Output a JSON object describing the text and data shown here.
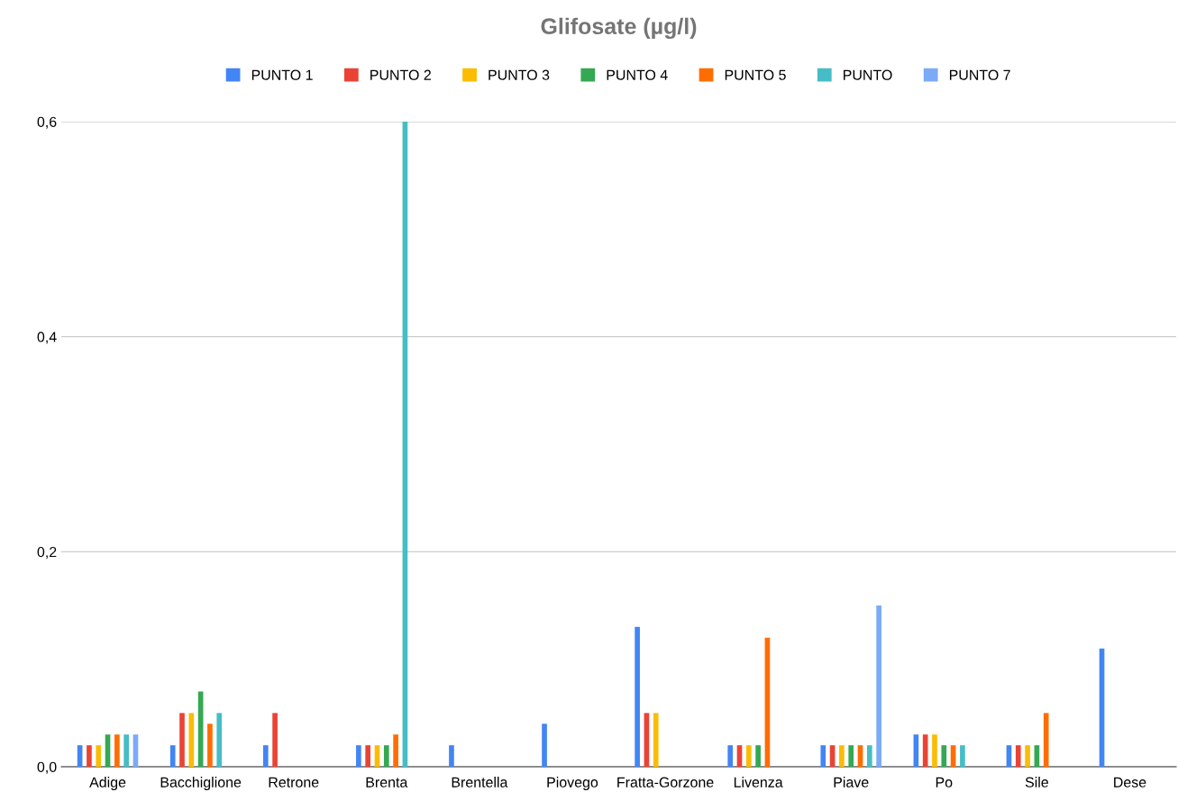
{
  "chart_data": {
    "type": "bar",
    "title": "Glifosate (µg/l)",
    "categories": [
      "Adige",
      "Bacchiglione",
      "Retrone",
      "Brenta",
      "Brentella",
      "Piovego",
      "Fratta-Gorzone",
      "Livenza",
      "Piave",
      "Po",
      "Sile",
      "Dese"
    ],
    "series": [
      {
        "name": "PUNTO 1",
        "color": "#4285f4",
        "values": [
          0.02,
          0.02,
          0.02,
          0.02,
          0.02,
          0.04,
          0.13,
          0.02,
          0.02,
          0.03,
          0.02,
          0.11
        ]
      },
      {
        "name": "PUNTO 2",
        "color": "#ea4335",
        "values": [
          0.02,
          0.05,
          0.05,
          0.02,
          null,
          null,
          0.05,
          0.02,
          0.02,
          0.03,
          0.02,
          null
        ]
      },
      {
        "name": "PUNTO 3",
        "color": "#fbbc04",
        "values": [
          0.02,
          0.05,
          null,
          0.02,
          null,
          null,
          0.05,
          0.02,
          0.02,
          0.03,
          0.02,
          null
        ]
      },
      {
        "name": "PUNTO 4",
        "color": "#34a853",
        "values": [
          0.03,
          0.07,
          null,
          0.02,
          null,
          null,
          null,
          0.02,
          0.02,
          0.02,
          0.02,
          null
        ]
      },
      {
        "name": "PUNTO 5",
        "color": "#ff6d01",
        "values": [
          0.03,
          0.04,
          null,
          0.03,
          null,
          null,
          null,
          0.12,
          0.02,
          0.02,
          0.05,
          null
        ]
      },
      {
        "name": "PUNTO",
        "color": "#46bdc6",
        "values": [
          0.03,
          0.05,
          null,
          0.6,
          null,
          null,
          null,
          null,
          0.02,
          0.02,
          null,
          null
        ]
      },
      {
        "name": "PUNTO 7",
        "color": "#7baaf7",
        "values": [
          0.03,
          null,
          null,
          null,
          null,
          null,
          null,
          null,
          0.15,
          null,
          null,
          null
        ]
      }
    ],
    "ylim": [
      0,
      0.6
    ],
    "yticks": [
      {
        "value": 0,
        "label": "0,0"
      },
      {
        "value": 0.2,
        "label": "0,2"
      },
      {
        "value": 0.4,
        "label": "0,4"
      },
      {
        "value": 0.6,
        "label": "0,6"
      }
    ],
    "grid": "y",
    "legend": "top"
  }
}
